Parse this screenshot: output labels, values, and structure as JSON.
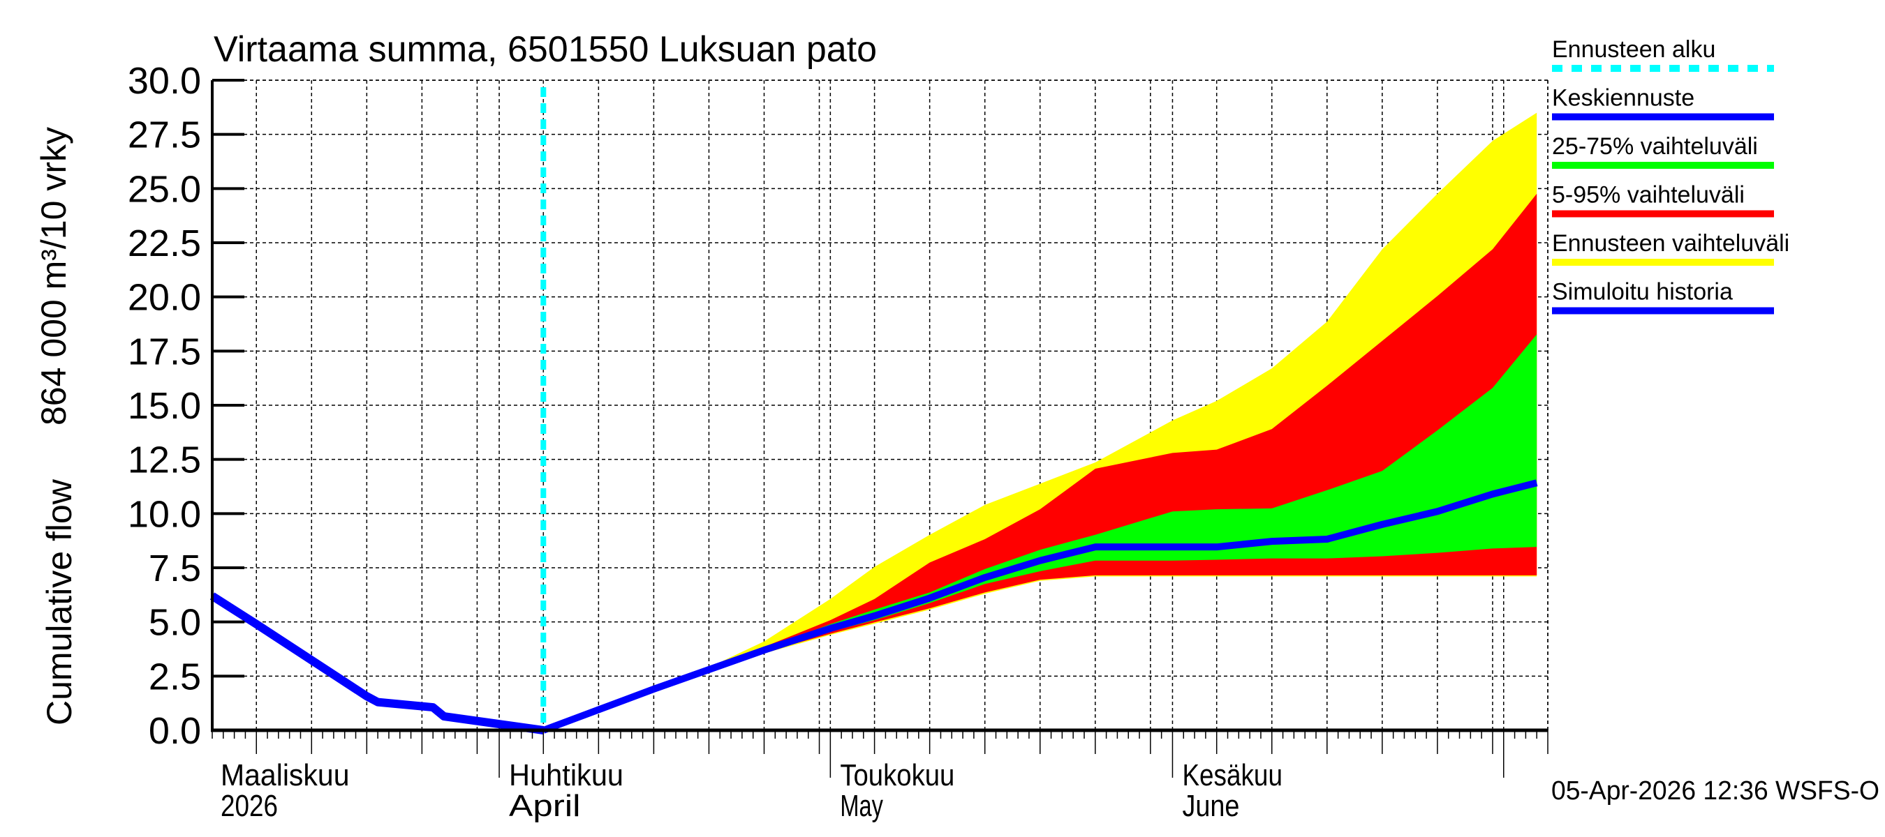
{
  "chart_data": {
    "type": "area",
    "title": "Virtaama summa, 6501550 Luksuan pato",
    "ylabel_parts": [
      "Cumulative flow",
      "864 000 m³/10 vrky"
    ],
    "ylim": [
      0,
      30
    ],
    "yticks": [
      "0.0",
      "2.5",
      "5.0",
      "7.5",
      "10.0",
      "12.5",
      "15.0",
      "17.5",
      "20.0",
      "22.5",
      "25.0",
      "27.5",
      "30.0"
    ],
    "xlim": [
      "2026-03-06",
      "2026-07-05"
    ],
    "grid": true,
    "legend_placement": "right",
    "months": [
      {
        "date": "2026-03-01",
        "line1": "Maaliskuu",
        "line2": "2026"
      },
      {
        "date": "2026-04-01",
        "line1": "Huhtikuu",
        "line2": "April"
      },
      {
        "date": "2026-05-01",
        "line1": "Toukokuu",
        "line2": "May"
      },
      {
        "date": "2026-06-01",
        "line1": "Kesäkuu",
        "line2": "June"
      },
      {
        "date": "2026-07-01",
        "line1": "",
        "line2": ""
      }
    ],
    "forecast_start": "2026-04-05",
    "history": {
      "name": "Simuloitu historia",
      "x": [
        "2026-03-06",
        "2026-03-10",
        "2026-03-20",
        "2026-03-21",
        "2026-03-26",
        "2026-03-27",
        "2026-04-05"
      ],
      "y": [
        6.2,
        4.9,
        1.57,
        1.3,
        1.06,
        0.64,
        0.0
      ]
    },
    "forecast": {
      "x": [
        "2026-04-05",
        "2026-04-15",
        "2026-04-20",
        "2026-04-25",
        "2026-05-01",
        "2026-05-05",
        "2026-05-10",
        "2026-05-15",
        "2026-05-20",
        "2026-05-25",
        "2026-06-01",
        "2026-06-05",
        "2026-06-10",
        "2026-06-15",
        "2026-06-20",
        "2026-06-25",
        "2026-06-30",
        "2026-07-04"
      ],
      "max": [
        0,
        1.9,
        2.9,
        4.1,
        6.06,
        7.54,
        9.02,
        10.4,
        11.38,
        12.36,
        14.3,
        15.2,
        16.7,
        18.86,
        22.2,
        24.76,
        27.2,
        28.5
      ],
      "p95": [
        0,
        1.9,
        2.8,
        3.85,
        5.08,
        6.06,
        7.74,
        8.82,
        10.2,
        12.07,
        12.8,
        12.95,
        13.9,
        15.9,
        17.97,
        20.04,
        22.2,
        24.76
      ],
      "p75": [
        0,
        1.9,
        2.8,
        3.75,
        4.9,
        5.57,
        6.36,
        7.44,
        8.33,
        9.02,
        10.1,
        10.2,
        10.24,
        11.08,
        11.97,
        13.84,
        15.8,
        18.27
      ],
      "median": [
        0,
        1.9,
        2.8,
        3.7,
        4.7,
        5.28,
        6.1,
        7.05,
        7.83,
        8.46,
        8.46,
        8.46,
        8.72,
        8.82,
        9.5,
        10.1,
        10.9,
        11.42
      ],
      "p25": [
        0,
        1.9,
        2.8,
        3.65,
        4.55,
        5.08,
        5.87,
        6.75,
        7.34,
        7.83,
        7.83,
        7.87,
        7.93,
        7.93,
        8.03,
        8.19,
        8.39,
        8.46
      ],
      "p5": [
        0,
        1.9,
        2.8,
        3.6,
        4.45,
        4.98,
        5.63,
        6.36,
        6.95,
        7.15,
        7.15,
        7.15,
        7.15,
        7.15,
        7.15,
        7.15,
        7.15,
        7.15
      ],
      "min": [
        0,
        1.9,
        2.8,
        3.55,
        4.4,
        4.92,
        5.57,
        6.3,
        6.9,
        7.1,
        7.1,
        7.1,
        7.1,
        7.1,
        7.1,
        7.1,
        7.1,
        7.1
      ]
    },
    "legend": [
      {
        "label": "Ennusteen alku",
        "color": "#00ffff",
        "style": "dashed"
      },
      {
        "label": "Keskiennuste",
        "color": "#0000ff",
        "style": "solid"
      },
      {
        "label": "25-75% vaihteluväli",
        "color": "#00ff00",
        "style": "solid"
      },
      {
        "label": "5-95% vaihteluväli",
        "color": "#ff0000",
        "style": "solid"
      },
      {
        "label": "Ennusteen vaihteluväli",
        "color": "#ffff00",
        "style": "solid"
      },
      {
        "label": "Simuloitu historia",
        "color": "#0000ff",
        "style": "solid"
      }
    ],
    "colors": {
      "max_band": "#ffff00",
      "p95_band": "#ff0000",
      "p75_band": "#00ff00",
      "median": "#0000ff",
      "history": "#0000ff",
      "forecast_start": "#00ffff"
    }
  },
  "footer": {
    "timestamp": "05-Apr-2026 12:36 WSFS-O"
  }
}
